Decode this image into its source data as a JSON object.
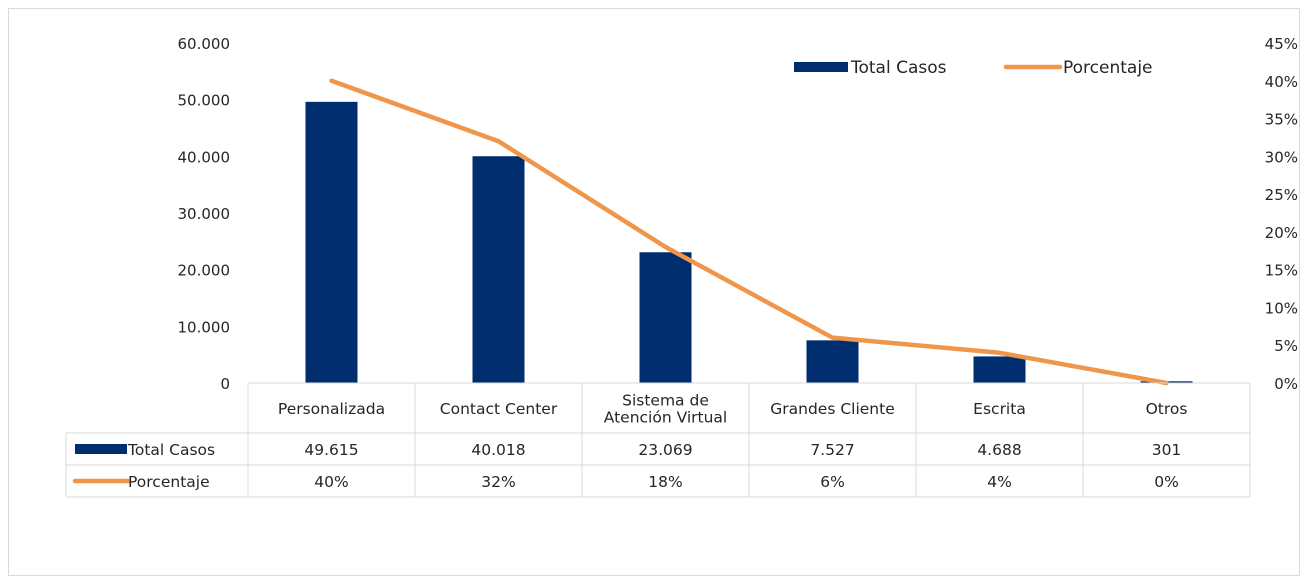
{
  "chart_data": {
    "type": "bar",
    "categories": [
      [
        "Personalizada"
      ],
      [
        "Contact Center"
      ],
      [
        "Sistema de",
        "Atención Virtual"
      ],
      [
        "Grandes Cliente"
      ],
      [
        "Escrita"
      ],
      [
        "Otros"
      ]
    ],
    "series": [
      {
        "name": "Total Casos",
        "type": "bar",
        "axis": "left",
        "color": "#002d6e",
        "values": [
          49615,
          40018,
          23069,
          7527,
          4688,
          301
        ],
        "labels": [
          "49.615",
          "40.018",
          "23.069",
          "7.527",
          "4.688",
          "301"
        ]
      },
      {
        "name": "Porcentaje",
        "type": "line",
        "axis": "right",
        "color": "#f0964a",
        "values": [
          0.4,
          0.32,
          0.18,
          0.06,
          0.04,
          0.0
        ],
        "labels": [
          "40%",
          "32%",
          "18%",
          "6%",
          "4%",
          "0%"
        ]
      }
    ],
    "y_left": {
      "range": [
        0,
        60000
      ],
      "ticks": [
        0,
        10000,
        20000,
        30000,
        40000,
        50000,
        60000
      ],
      "tick_labels": [
        "0",
        "10.000",
        "20.000",
        "30.000",
        "40.000",
        "50.000",
        "60.000"
      ]
    },
    "y_right": {
      "range": [
        0,
        0.45
      ],
      "ticks": [
        0,
        0.05,
        0.1,
        0.15,
        0.2,
        0.25,
        0.3,
        0.35,
        0.4,
        0.45
      ],
      "tick_labels": [
        "0%",
        "5%",
        "10%",
        "15%",
        "20%",
        "25%",
        "30%",
        "35%",
        "40%",
        "45%"
      ]
    },
    "legend": {
      "position": "top-right",
      "items": [
        {
          "label": "Total Casos",
          "kind": "bar"
        },
        {
          "label": "Porcentaje",
          "kind": "line"
        }
      ]
    },
    "data_table": true,
    "grid": false
  }
}
